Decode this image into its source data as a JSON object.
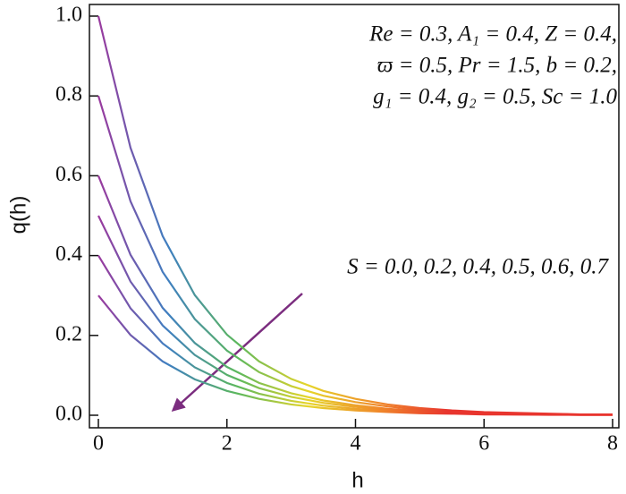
{
  "chart_data": {
    "type": "line",
    "xlabel": "h",
    "ylabel": "q(h)",
    "annotations": [
      "Re = 0.3, A₁ = 0.4, Z = 0.4,",
      "ϖ = 0.5, Pr = 1.5, b = 0.2,",
      "g₁ = 0.4,  g₂ = 0.5, Sc = 1.0",
      "S = 0.0, 0.2, 0.4, 0.5, 0.6, 0.7"
    ],
    "line_gradient": [
      "#9a3a9e",
      "#3f7fc0",
      "#5cb85c",
      "#e6d52a",
      "#f08a2a",
      "#e8352e"
    ],
    "x": [
      0,
      0.5,
      1,
      1.5,
      2,
      2.5,
      3,
      3.5,
      4,
      4.5,
      5,
      5.5,
      6,
      6.5,
      7,
      7.5,
      8
    ],
    "series": [
      {
        "values": [
          1.0,
          0.67,
          0.449,
          0.301,
          0.202,
          0.135,
          0.091,
          0.061,
          0.041,
          0.027,
          0.018,
          0.012,
          0.008,
          0.006,
          0.004,
          0.002,
          0.002
        ]
      },
      {
        "values": [
          0.8,
          0.536,
          0.359,
          0.241,
          0.162,
          0.108,
          0.073,
          0.049,
          0.033,
          0.022,
          0.014,
          0.01,
          0.006,
          0.005,
          0.003,
          0.002,
          0.002
        ]
      },
      {
        "values": [
          0.6,
          0.402,
          0.269,
          0.181,
          0.121,
          0.081,
          0.055,
          0.037,
          0.025,
          0.016,
          0.011,
          0.007,
          0.005,
          0.004,
          0.002,
          0.001,
          0.001
        ]
      },
      {
        "values": [
          0.5,
          0.335,
          0.225,
          0.151,
          0.101,
          0.068,
          0.046,
          0.031,
          0.021,
          0.014,
          0.009,
          0.006,
          0.004,
          0.003,
          0.002,
          0.001,
          0.001
        ]
      },
      {
        "values": [
          0.4,
          0.268,
          0.18,
          0.12,
          0.081,
          0.054,
          0.036,
          0.024,
          0.016,
          0.011,
          0.007,
          0.005,
          0.003,
          0.002,
          0.002,
          0.001,
          0.001
        ]
      },
      {
        "values": [
          0.3,
          0.201,
          0.135,
          0.09,
          0.061,
          0.041,
          0.027,
          0.018,
          0.012,
          0.008,
          0.005,
          0.004,
          0.002,
          0.002,
          0.001,
          0.001,
          0.001
        ]
      }
    ],
    "xlim": [
      0,
      8
    ],
    "xticks": [
      0,
      2,
      4,
      6,
      8
    ],
    "ylim": [
      0,
      1
    ],
    "yticks": [
      {
        "value": 0,
        "label": "0.0"
      },
      0.2,
      0.4,
      0.6,
      0.8,
      {
        "value": 1,
        "label": "1.0"
      }
    ]
  }
}
